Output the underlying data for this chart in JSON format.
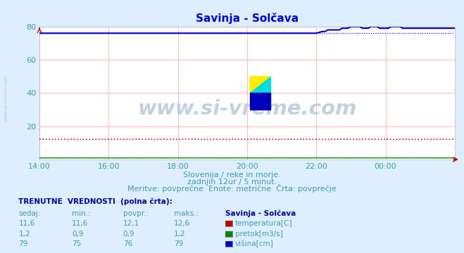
{
  "title": "Savinja - Solčava",
  "bg_color": "#ddeeff",
  "plot_bg_color": "#ffffff",
  "grid_color": "#ffbbbb",
  "x_ticks_labels": [
    "14:00",
    "16:00",
    "18:00",
    "20:00",
    "22:00",
    "00:00"
  ],
  "x_ticks_pos": [
    0,
    24,
    48,
    72,
    96,
    120
  ],
  "ylim": [
    0,
    80
  ],
  "yticks": [
    20,
    40,
    60,
    80
  ],
  "n_points": 145,
  "temp_color": "#cc0000",
  "pretok_color": "#008800",
  "visina_color": "#0000cc",
  "subtitle1": "Slovenija / reke in morje.",
  "subtitle2": "zadnjih 12ur / 5 minut.",
  "subtitle3": "Meritve: povprečne  Enote: metrične  Črta: povprečje",
  "table_header": "TRENUTNE  VREDNOSTI  (polna črta):",
  "col_headers": [
    "sedaj:",
    "min.:",
    "povpr.:",
    "maks.:",
    "Savinja - Solčava"
  ],
  "row1": [
    "11,6",
    "11,6",
    "12,1",
    "12,6"
  ],
  "row2": [
    "1,2",
    "0,9",
    "0,9",
    "1,2"
  ],
  "row3": [
    "79",
    "75",
    "76",
    "79"
  ],
  "row1_label": "temperatura[C]",
  "row2_label": "pretok[m3/s]",
  "row3_label": "višina[cm]",
  "watermark": "www.si-vreme.com",
  "side_text": "www.si-vreme.com",
  "title_color": "#0000cc",
  "text_color": "#4499aa",
  "table_bold_color": "#000099"
}
